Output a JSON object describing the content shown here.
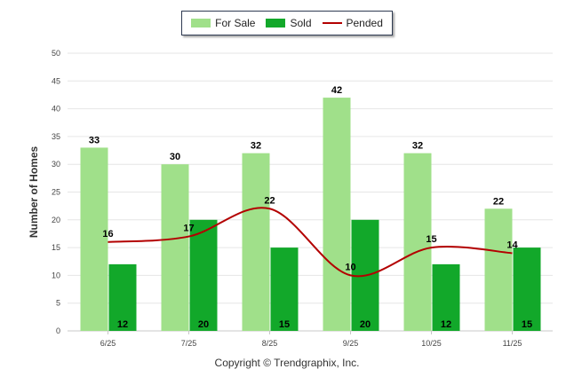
{
  "chart_data": {
    "type": "bar",
    "title": "",
    "xlabel": "",
    "ylabel": "Number of Homes",
    "ylim": [
      0,
      50
    ],
    "yticks": [
      0,
      5,
      10,
      15,
      20,
      25,
      30,
      35,
      40,
      45,
      50
    ],
    "categories": [
      "6/25",
      "7/25",
      "8/25",
      "9/25",
      "10/25",
      "11/25"
    ],
    "series": [
      {
        "name": "For Sale",
        "kind": "bar",
        "color": "#a0e08a",
        "values": [
          33,
          30,
          32,
          42,
          32,
          22
        ]
      },
      {
        "name": "Sold",
        "kind": "bar",
        "color": "#12a82a",
        "values": [
          12,
          20,
          15,
          20,
          12,
          15
        ]
      },
      {
        "name": "Pended",
        "kind": "line",
        "color": "#b30000",
        "values": [
          16,
          17,
          22,
          10,
          15,
          14
        ]
      }
    ],
    "grid": true,
    "legend_position": "top-center"
  },
  "footer": "Copyright © Trendgraphix, Inc."
}
